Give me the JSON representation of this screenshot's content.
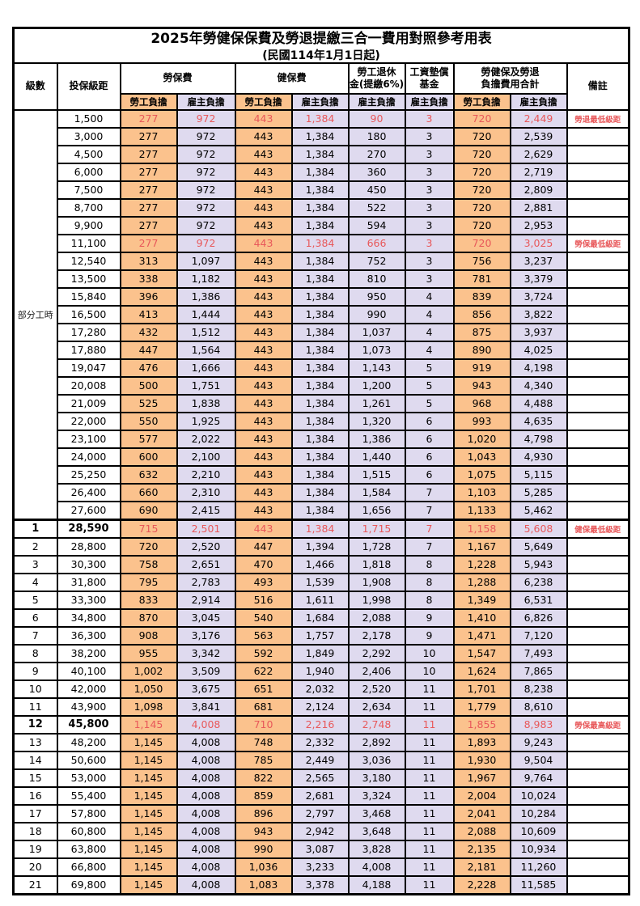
{
  "page": {
    "title_line1": "2025年勞健保保費及勞退提繳三合一費用對照參考用表",
    "title_line2": "(民國114年1月1日起)"
  },
  "header": {
    "level": "級數",
    "bracket": "投保級距",
    "labor_fee": "勞保費",
    "health_fee": "健保費",
    "pension_l1": "勞工退休",
    "pension_l2": "金(提繳6%)",
    "wage_fund_l1": "工資墊償",
    "wage_fund_l2": "基金",
    "total_l1": "勞健保及勞退",
    "total_l2": "負擔費用合計",
    "remark": "備註",
    "employee_label": "勞工負擔",
    "employer_label": "雇主負擔"
  },
  "part_time_label": "部分工時",
  "part_time_row_count": 23,
  "colors": {
    "employee_bg": "#FBC28D",
    "employer_bg": "#DFDAEF",
    "highlight_text": "#E8585A"
  },
  "rows": [
    {
      "level": "",
      "bracket": "1,500",
      "labor_emp": "277",
      "labor_er": "972",
      "health_emp": "443",
      "health_er": "1,384",
      "pension_er": "90",
      "wage_fund_er": "3",
      "total_emp": "720",
      "total_er": "2,449",
      "remark": "勞退最低級距",
      "red": true,
      "bold": false
    },
    {
      "level": "",
      "bracket": "3,000",
      "labor_emp": "277",
      "labor_er": "972",
      "health_emp": "443",
      "health_er": "1,384",
      "pension_er": "180",
      "wage_fund_er": "3",
      "total_emp": "720",
      "total_er": "2,539",
      "remark": "",
      "red": false,
      "bold": false
    },
    {
      "level": "",
      "bracket": "4,500",
      "labor_emp": "277",
      "labor_er": "972",
      "health_emp": "443",
      "health_er": "1,384",
      "pension_er": "270",
      "wage_fund_er": "3",
      "total_emp": "720",
      "total_er": "2,629",
      "remark": "",
      "red": false,
      "bold": false
    },
    {
      "level": "",
      "bracket": "6,000",
      "labor_emp": "277",
      "labor_er": "972",
      "health_emp": "443",
      "health_er": "1,384",
      "pension_er": "360",
      "wage_fund_er": "3",
      "total_emp": "720",
      "total_er": "2,719",
      "remark": "",
      "red": false,
      "bold": false
    },
    {
      "level": "",
      "bracket": "7,500",
      "labor_emp": "277",
      "labor_er": "972",
      "health_emp": "443",
      "health_er": "1,384",
      "pension_er": "450",
      "wage_fund_er": "3",
      "total_emp": "720",
      "total_er": "2,809",
      "remark": "",
      "red": false,
      "bold": false
    },
    {
      "level": "",
      "bracket": "8,700",
      "labor_emp": "277",
      "labor_er": "972",
      "health_emp": "443",
      "health_er": "1,384",
      "pension_er": "522",
      "wage_fund_er": "3",
      "total_emp": "720",
      "total_er": "2,881",
      "remark": "",
      "red": false,
      "bold": false
    },
    {
      "level": "",
      "bracket": "9,900",
      "labor_emp": "277",
      "labor_er": "972",
      "health_emp": "443",
      "health_er": "1,384",
      "pension_er": "594",
      "wage_fund_er": "3",
      "total_emp": "720",
      "total_er": "2,953",
      "remark": "",
      "red": false,
      "bold": false
    },
    {
      "level": "",
      "bracket": "11,100",
      "labor_emp": "277",
      "labor_er": "972",
      "health_emp": "443",
      "health_er": "1,384",
      "pension_er": "666",
      "wage_fund_er": "3",
      "total_emp": "720",
      "total_er": "3,025",
      "remark": "勞保最低級距",
      "red": true,
      "bold": false
    },
    {
      "level": "",
      "bracket": "12,540",
      "labor_emp": "313",
      "labor_er": "1,097",
      "health_emp": "443",
      "health_er": "1,384",
      "pension_er": "752",
      "wage_fund_er": "3",
      "total_emp": "756",
      "total_er": "3,237",
      "remark": "",
      "red": false,
      "bold": false
    },
    {
      "level": "",
      "bracket": "13,500",
      "labor_emp": "338",
      "labor_er": "1,182",
      "health_emp": "443",
      "health_er": "1,384",
      "pension_er": "810",
      "wage_fund_er": "3",
      "total_emp": "781",
      "total_er": "3,379",
      "remark": "",
      "red": false,
      "bold": false
    },
    {
      "level": "",
      "bracket": "15,840",
      "labor_emp": "396",
      "labor_er": "1,386",
      "health_emp": "443",
      "health_er": "1,384",
      "pension_er": "950",
      "wage_fund_er": "4",
      "total_emp": "839",
      "total_er": "3,724",
      "remark": "",
      "red": false,
      "bold": false
    },
    {
      "level": "",
      "bracket": "16,500",
      "labor_emp": "413",
      "labor_er": "1,444",
      "health_emp": "443",
      "health_er": "1,384",
      "pension_er": "990",
      "wage_fund_er": "4",
      "total_emp": "856",
      "total_er": "3,822",
      "remark": "",
      "red": false,
      "bold": false
    },
    {
      "level": "",
      "bracket": "17,280",
      "labor_emp": "432",
      "labor_er": "1,512",
      "health_emp": "443",
      "health_er": "1,384",
      "pension_er": "1,037",
      "wage_fund_er": "4",
      "total_emp": "875",
      "total_er": "3,937",
      "remark": "",
      "red": false,
      "bold": false
    },
    {
      "level": "",
      "bracket": "17,880",
      "labor_emp": "447",
      "labor_er": "1,564",
      "health_emp": "443",
      "health_er": "1,384",
      "pension_er": "1,073",
      "wage_fund_er": "4",
      "total_emp": "890",
      "total_er": "4,025",
      "remark": "",
      "red": false,
      "bold": false
    },
    {
      "level": "",
      "bracket": "19,047",
      "labor_emp": "476",
      "labor_er": "1,666",
      "health_emp": "443",
      "health_er": "1,384",
      "pension_er": "1,143",
      "wage_fund_er": "5",
      "total_emp": "919",
      "total_er": "4,198",
      "remark": "",
      "red": false,
      "bold": false
    },
    {
      "level": "",
      "bracket": "20,008",
      "labor_emp": "500",
      "labor_er": "1,751",
      "health_emp": "443",
      "health_er": "1,384",
      "pension_er": "1,200",
      "wage_fund_er": "5",
      "total_emp": "943",
      "total_er": "4,340",
      "remark": "",
      "red": false,
      "bold": false
    },
    {
      "level": "",
      "bracket": "21,009",
      "labor_emp": "525",
      "labor_er": "1,838",
      "health_emp": "443",
      "health_er": "1,384",
      "pension_er": "1,261",
      "wage_fund_er": "5",
      "total_emp": "968",
      "total_er": "4,488",
      "remark": "",
      "red": false,
      "bold": false
    },
    {
      "level": "",
      "bracket": "22,000",
      "labor_emp": "550",
      "labor_er": "1,925",
      "health_emp": "443",
      "health_er": "1,384",
      "pension_er": "1,320",
      "wage_fund_er": "6",
      "total_emp": "993",
      "total_er": "4,635",
      "remark": "",
      "red": false,
      "bold": false
    },
    {
      "level": "",
      "bracket": "23,100",
      "labor_emp": "577",
      "labor_er": "2,022",
      "health_emp": "443",
      "health_er": "1,384",
      "pension_er": "1,386",
      "wage_fund_er": "6",
      "total_emp": "1,020",
      "total_er": "4,798",
      "remark": "",
      "red": false,
      "bold": false
    },
    {
      "level": "",
      "bracket": "24,000",
      "labor_emp": "600",
      "labor_er": "2,100",
      "health_emp": "443",
      "health_er": "1,384",
      "pension_er": "1,440",
      "wage_fund_er": "6",
      "total_emp": "1,043",
      "total_er": "4,930",
      "remark": "",
      "red": false,
      "bold": false
    },
    {
      "level": "",
      "bracket": "25,250",
      "labor_emp": "632",
      "labor_er": "2,210",
      "health_emp": "443",
      "health_er": "1,384",
      "pension_er": "1,515",
      "wage_fund_er": "6",
      "total_emp": "1,075",
      "total_er": "5,115",
      "remark": "",
      "red": false,
      "bold": false
    },
    {
      "level": "",
      "bracket": "26,400",
      "labor_emp": "660",
      "labor_er": "2,310",
      "health_emp": "443",
      "health_er": "1,384",
      "pension_er": "1,584",
      "wage_fund_er": "7",
      "total_emp": "1,103",
      "total_er": "5,285",
      "remark": "",
      "red": false,
      "bold": false
    },
    {
      "level": "",
      "bracket": "27,600",
      "labor_emp": "690",
      "labor_er": "2,415",
      "health_emp": "443",
      "health_er": "1,384",
      "pension_er": "1,656",
      "wage_fund_er": "7",
      "total_emp": "1,133",
      "total_er": "5,462",
      "remark": "",
      "red": false,
      "bold": false
    },
    {
      "level": "1",
      "bracket": "28,590",
      "labor_emp": "715",
      "labor_er": "2,501",
      "health_emp": "443",
      "health_er": "1,384",
      "pension_er": "1,715",
      "wage_fund_er": "7",
      "total_emp": "1,158",
      "total_er": "5,608",
      "remark": "健保最低級距",
      "red": true,
      "bold": true
    },
    {
      "level": "2",
      "bracket": "28,800",
      "labor_emp": "720",
      "labor_er": "2,520",
      "health_emp": "447",
      "health_er": "1,394",
      "pension_er": "1,728",
      "wage_fund_er": "7",
      "total_emp": "1,167",
      "total_er": "5,649",
      "remark": "",
      "red": false,
      "bold": false
    },
    {
      "level": "3",
      "bracket": "30,300",
      "labor_emp": "758",
      "labor_er": "2,651",
      "health_emp": "470",
      "health_er": "1,466",
      "pension_er": "1,818",
      "wage_fund_er": "8",
      "total_emp": "1,228",
      "total_er": "5,943",
      "remark": "",
      "red": false,
      "bold": false
    },
    {
      "level": "4",
      "bracket": "31,800",
      "labor_emp": "795",
      "labor_er": "2,783",
      "health_emp": "493",
      "health_er": "1,539",
      "pension_er": "1,908",
      "wage_fund_er": "8",
      "total_emp": "1,288",
      "total_er": "6,238",
      "remark": "",
      "red": false,
      "bold": false
    },
    {
      "level": "5",
      "bracket": "33,300",
      "labor_emp": "833",
      "labor_er": "2,914",
      "health_emp": "516",
      "health_er": "1,611",
      "pension_er": "1,998",
      "wage_fund_er": "8",
      "total_emp": "1,349",
      "total_er": "6,531",
      "remark": "",
      "red": false,
      "bold": false
    },
    {
      "level": "6",
      "bracket": "34,800",
      "labor_emp": "870",
      "labor_er": "3,045",
      "health_emp": "540",
      "health_er": "1,684",
      "pension_er": "2,088",
      "wage_fund_er": "9",
      "total_emp": "1,410",
      "total_er": "6,826",
      "remark": "",
      "red": false,
      "bold": false
    },
    {
      "level": "7",
      "bracket": "36,300",
      "labor_emp": "908",
      "labor_er": "3,176",
      "health_emp": "563",
      "health_er": "1,757",
      "pension_er": "2,178",
      "wage_fund_er": "9",
      "total_emp": "1,471",
      "total_er": "7,120",
      "remark": "",
      "red": false,
      "bold": false
    },
    {
      "level": "8",
      "bracket": "38,200",
      "labor_emp": "955",
      "labor_er": "3,342",
      "health_emp": "592",
      "health_er": "1,849",
      "pension_er": "2,292",
      "wage_fund_er": "10",
      "total_emp": "1,547",
      "total_er": "7,493",
      "remark": "",
      "red": false,
      "bold": false
    },
    {
      "level": "9",
      "bracket": "40,100",
      "labor_emp": "1,002",
      "labor_er": "3,509",
      "health_emp": "622",
      "health_er": "1,940",
      "pension_er": "2,406",
      "wage_fund_er": "10",
      "total_emp": "1,624",
      "total_er": "7,865",
      "remark": "",
      "red": false,
      "bold": false
    },
    {
      "level": "10",
      "bracket": "42,000",
      "labor_emp": "1,050",
      "labor_er": "3,675",
      "health_emp": "651",
      "health_er": "2,032",
      "pension_er": "2,520",
      "wage_fund_er": "11",
      "total_emp": "1,701",
      "total_er": "8,238",
      "remark": "",
      "red": false,
      "bold": false
    },
    {
      "level": "11",
      "bracket": "43,900",
      "labor_emp": "1,098",
      "labor_er": "3,841",
      "health_emp": "681",
      "health_er": "2,124",
      "pension_er": "2,634",
      "wage_fund_er": "11",
      "total_emp": "1,779",
      "total_er": "8,610",
      "remark": "",
      "red": false,
      "bold": false
    },
    {
      "level": "12",
      "bracket": "45,800",
      "labor_emp": "1,145",
      "labor_er": "4,008",
      "health_emp": "710",
      "health_er": "2,216",
      "pension_er": "2,748",
      "wage_fund_er": "11",
      "total_emp": "1,855",
      "total_er": "8,983",
      "remark": "勞保最高級距",
      "red": true,
      "bold": true
    },
    {
      "level": "13",
      "bracket": "48,200",
      "labor_emp": "1,145",
      "labor_er": "4,008",
      "health_emp": "748",
      "health_er": "2,332",
      "pension_er": "2,892",
      "wage_fund_er": "11",
      "total_emp": "1,893",
      "total_er": "9,243",
      "remark": "",
      "red": false,
      "bold": false
    },
    {
      "level": "14",
      "bracket": "50,600",
      "labor_emp": "1,145",
      "labor_er": "4,008",
      "health_emp": "785",
      "health_er": "2,449",
      "pension_er": "3,036",
      "wage_fund_er": "11",
      "total_emp": "1,930",
      "total_er": "9,504",
      "remark": "",
      "red": false,
      "bold": false
    },
    {
      "level": "15",
      "bracket": "53,000",
      "labor_emp": "1,145",
      "labor_er": "4,008",
      "health_emp": "822",
      "health_er": "2,565",
      "pension_er": "3,180",
      "wage_fund_er": "11",
      "total_emp": "1,967",
      "total_er": "9,764",
      "remark": "",
      "red": false,
      "bold": false
    },
    {
      "level": "16",
      "bracket": "55,400",
      "labor_emp": "1,145",
      "labor_er": "4,008",
      "health_emp": "859",
      "health_er": "2,681",
      "pension_er": "3,324",
      "wage_fund_er": "11",
      "total_emp": "2,004",
      "total_er": "10,024",
      "remark": "",
      "red": false,
      "bold": false
    },
    {
      "level": "17",
      "bracket": "57,800",
      "labor_emp": "1,145",
      "labor_er": "4,008",
      "health_emp": "896",
      "health_er": "2,797",
      "pension_er": "3,468",
      "wage_fund_er": "11",
      "total_emp": "2,041",
      "total_er": "10,284",
      "remark": "",
      "red": false,
      "bold": false
    },
    {
      "level": "18",
      "bracket": "60,800",
      "labor_emp": "1,145",
      "labor_er": "4,008",
      "health_emp": "943",
      "health_er": "2,942",
      "pension_er": "3,648",
      "wage_fund_er": "11",
      "total_emp": "2,088",
      "total_er": "10,609",
      "remark": "",
      "red": false,
      "bold": false
    },
    {
      "level": "19",
      "bracket": "63,800",
      "labor_emp": "1,145",
      "labor_er": "4,008",
      "health_emp": "990",
      "health_er": "3,087",
      "pension_er": "3,828",
      "wage_fund_er": "11",
      "total_emp": "2,135",
      "total_er": "10,934",
      "remark": "",
      "red": false,
      "bold": false
    },
    {
      "level": "20",
      "bracket": "66,800",
      "labor_emp": "1,145",
      "labor_er": "4,008",
      "health_emp": "1,036",
      "health_er": "3,233",
      "pension_er": "4,008",
      "wage_fund_er": "11",
      "total_emp": "2,181",
      "total_er": "11,260",
      "remark": "",
      "red": false,
      "bold": false
    },
    {
      "level": "21",
      "bracket": "69,800",
      "labor_emp": "1,145",
      "labor_er": "4,008",
      "health_emp": "1,083",
      "health_er": "3,378",
      "pension_er": "4,188",
      "wage_fund_er": "11",
      "total_emp": "2,228",
      "total_er": "11,585",
      "remark": "",
      "red": false,
      "bold": false
    }
  ]
}
